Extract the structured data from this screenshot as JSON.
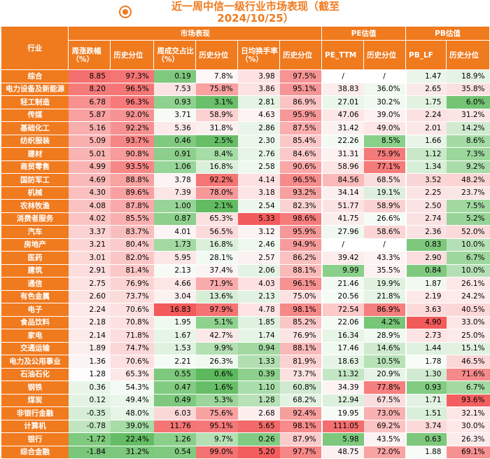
{
  "title": {
    "line1": "近一周中信一级行业市场表现（截至",
    "line2": "2024/10/25）"
  },
  "header": {
    "industry": "行业",
    "groups": [
      "市场表现",
      "PE估值",
      "PB估值"
    ],
    "columns": [
      "周涨跌幅（%）",
      "历史分位",
      "周成交占比（%）",
      "历史分位",
      "日均换手率（%）",
      "历史分位",
      "PE_TTM",
      "历史分位",
      "PB_LF",
      "历史分位"
    ]
  },
  "rows": [
    {
      "name": "综合",
      "values": [
        "8.85",
        "97.3%",
        "0.19",
        "7.8%",
        "3.98",
        "97.5%",
        "/",
        "/",
        "1.47",
        "18.9%"
      ]
    },
    {
      "name": "电力设备及新能源",
      "values": [
        "8.20",
        "96.5%",
        "7.53",
        "75.8%",
        "3.86",
        "95.1%",
        "38.83",
        "36.0%",
        "2.65",
        "35.8%"
      ]
    },
    {
      "name": "轻工制造",
      "values": [
        "6.78",
        "96.3%",
        "0.93",
        "3.1%",
        "2.81",
        "86.9%",
        "27.01",
        "30.2%",
        "1.75",
        "6.0%"
      ]
    },
    {
      "name": "传媒",
      "values": [
        "5.87",
        "92.0%",
        "3.71",
        "58.9%",
        "4.63",
        "95.9%",
        "47.06",
        "39.0%",
        "2.24",
        "31.2%"
      ]
    },
    {
      "name": "基础化工",
      "values": [
        "5.16",
        "92.2%",
        "5.36",
        "31.8%",
        "2.86",
        "87.5%",
        "31.42",
        "49.0%",
        "2.01",
        "14.2%"
      ]
    },
    {
      "name": "纺织服装",
      "values": [
        "5.09",
        "93.7%",
        "0.46",
        "2.5%",
        "2.30",
        "85.4%",
        "22.26",
        "8.5%",
        "1.66",
        "8.6%"
      ]
    },
    {
      "name": "建材",
      "values": [
        "5.01",
        "90.8%",
        "0.91",
        "8.4%",
        "2.76",
        "84.6%",
        "31.31",
        "75.9%",
        "1.12",
        "7.3%"
      ]
    },
    {
      "name": "商贸零售",
      "values": [
        "4.99",
        "93.5%",
        "1.06",
        "16.8%",
        "2.58",
        "90.6%",
        "58.96",
        "77.1%",
        "1.34",
        "9.2%"
      ]
    },
    {
      "name": "国防军工",
      "values": [
        "4.69",
        "88.8%",
        "3.78",
        "92.2%",
        "4.14",
        "96.5%",
        "84.56",
        "68.5%",
        "3.52",
        "48.2%"
      ]
    },
    {
      "name": "机械",
      "values": [
        "4.30",
        "89.6%",
        "7.39",
        "78.0%",
        "3.18",
        "93.2%",
        "34.14",
        "19.1%",
        "2.25",
        "23.7%"
      ]
    },
    {
      "name": "农林牧渔",
      "values": [
        "4.08",
        "87.8%",
        "1.00",
        "2.1%",
        "2.54",
        "82.3%",
        "51.77",
        "58.9%",
        "2.50",
        "7.5%"
      ]
    },
    {
      "name": "消费者服务",
      "values": [
        "4.02",
        "85.5%",
        "0.87",
        "65.3%",
        "5.33",
        "98.6%",
        "41.75",
        "26.6%",
        "2.74",
        "5.2%"
      ]
    },
    {
      "name": "汽车",
      "values": [
        "3.37",
        "83.7%",
        "4.01",
        "56.5%",
        "3.12",
        "95.9%",
        "27.96",
        "58.6%",
        "2.36",
        "52.0%"
      ]
    },
    {
      "name": "房地产",
      "values": [
        "3.21",
        "80.4%",
        "1.73",
        "16.8%",
        "2.46",
        "94.9%",
        "/",
        "/",
        "0.83",
        "10.0%"
      ]
    },
    {
      "name": "医药",
      "values": [
        "3.01",
        "82.0%",
        "5.95",
        "28.1%",
        "2.57",
        "86.2%",
        "39.42",
        "43.3%",
        "2.90",
        "6.7%"
      ]
    },
    {
      "name": "建筑",
      "values": [
        "2.91",
        "81.4%",
        "2.13",
        "37.4%",
        "2.06",
        "88.1%",
        "9.99",
        "35.5%",
        "0.84",
        "10.0%"
      ]
    },
    {
      "name": "通信",
      "values": [
        "2.75",
        "76.9%",
        "4.66",
        "71.9%",
        "4.03",
        "96.1%",
        "21.46",
        "19.9%",
        "1.87",
        "26.1%"
      ]
    },
    {
      "name": "有色金属",
      "values": [
        "2.60",
        "73.7%",
        "3.04",
        "13.6%",
        "2.13",
        "75.0%",
        "20.56",
        "21.8%",
        "2.19",
        "24.2%"
      ]
    },
    {
      "name": "电子",
      "values": [
        "2.24",
        "70.6%",
        "16.83",
        "97.9%",
        "4.78",
        "98.1%",
        "72.54",
        "86.9%",
        "3.63",
        "40.5%"
      ]
    },
    {
      "name": "食品饮料",
      "values": [
        "2.18",
        "70.8%",
        "1.95",
        "5.1%",
        "1.85",
        "85.2%",
        "22.06",
        "4.2%",
        "4.90",
        "33.0%"
      ]
    },
    {
      "name": "家电",
      "values": [
        "2.14",
        "71.8%",
        "1.67",
        "42.7%",
        "1.74",
        "76.9%",
        "16.34",
        "28.9%",
        "2.73",
        "25.0%"
      ]
    },
    {
      "name": "交通运输",
      "values": [
        "1.89",
        "74.7%",
        "1.53",
        "9.9%",
        "0.94",
        "88.1%",
        "17.46",
        "14.6%",
        "1.44",
        "15.1%"
      ]
    },
    {
      "name": "电力及公用事业",
      "values": [
        "1.36",
        "70.6%",
        "2.21",
        "26.3%",
        "1.33",
        "81.9%",
        "18.63",
        "10.5%",
        "1.78",
        "46.5%"
      ]
    },
    {
      "name": "石油石化",
      "values": [
        "1.28",
        "65.3%",
        "0.55",
        "0.6%",
        "0.39",
        "73.7%",
        "11.32",
        "20.9%",
        "1.30",
        "71.6%"
      ]
    },
    {
      "name": "钢铁",
      "values": [
        "0.36",
        "54.3%",
        "0.47",
        "1.6%",
        "1.10",
        "60.8%",
        "34.39",
        "77.8%",
        "0.93",
        "6.7%"
      ]
    },
    {
      "name": "煤炭",
      "values": [
        "0.12",
        "49.4%",
        "0.49",
        "5.3%",
        "1.28",
        "68.2%",
        "12.94",
        "67.5%",
        "1.71",
        "93.6%"
      ]
    },
    {
      "name": "非银行金融",
      "values": [
        "-0.35",
        "48.0%",
        "6.03",
        "75.6%",
        "2.68",
        "92.4%",
        "19.95",
        "73.0%",
        "1.51",
        "32.1%"
      ]
    },
    {
      "name": "计算机",
      "values": [
        "-0.78",
        "39.0%",
        "11.76",
        "95.1%",
        "5.65",
        "98.1%",
        "111.05",
        "69.2%",
        "3.74",
        "30.0%"
      ]
    },
    {
      "name": "银行",
      "values": [
        "-1.72",
        "22.4%",
        "1.26",
        "9.7%",
        "0.26",
        "87.9%",
        "5.98",
        "43.5%",
        "0.63",
        "26.3%"
      ]
    },
    {
      "name": "综合金融",
      "values": [
        "-1.84",
        "31.2%",
        "0.54",
        "99.0%",
        "5.20",
        "97.7%",
        "48.75",
        "72.0%",
        "1.88",
        "69.1%"
      ]
    }
  ],
  "colors": {
    "header": "#f07a1e",
    "cells": [
      [
        "#f46f6f",
        "#f57474",
        "#7fc97f",
        "#fdf7f7",
        "#fde2e2",
        "#f69393",
        "#ffffff",
        "#ffffff",
        "#eaf6ea",
        "#e4f3e4"
      ],
      [
        "#f57a7a",
        "#f57676",
        "#fce3e3",
        "#f8a1a1",
        "#fde2e2",
        "#f69595",
        "#fcecec",
        "#f0f9f0",
        "#fbe9e9",
        "#fbe0e0"
      ],
      [
        "#f79191",
        "#f67a7a",
        "#8fd18f",
        "#6abf6a",
        "#e4f3e4",
        "#fbc3c3",
        "#e9f6e9",
        "#f1f9f1",
        "#e1f2e1",
        "#74c474"
      ],
      [
        "#f9a0a0",
        "#f79292",
        "#f6fbf6",
        "#fbd1d1",
        "#fdf3f3",
        "#f69898",
        "#fde6e6",
        "#fdf1f1",
        "#fbe1e1",
        "#fbe5e5"
      ],
      [
        "#f9aeae",
        "#f79191",
        "#fceaea",
        "#fbf0f0",
        "#e8f5e8",
        "#faaeae",
        "#fcf1f1",
        "#fce6e6",
        "#fce7e7",
        "#d1ebd1"
      ],
      [
        "#faafaf",
        "#f68585",
        "#80ca80",
        "#67be67",
        "#ebf7eb",
        "#fbc8c8",
        "#f3faf3",
        "#8ad08a",
        "#e8f5e8",
        "#a4dba4"
      ],
      [
        "#fab3b3",
        "#f79b9b",
        "#8ccf8c",
        "#a6dca6",
        "#e7f5e7",
        "#fbc9c9",
        "#fcf2f2",
        "#f57a7a",
        "#c9e8c9",
        "#9bd69b"
      ],
      [
        "#fab3b3",
        "#f68787",
        "#98d598",
        "#dbf0db",
        "#eff8ef",
        "#faa7a7",
        "#fde5e5",
        "#f57a7a",
        "#d7eed7",
        "#aadcaa"
      ],
      [
        "#fbb8b8",
        "#f8a2a2",
        "#fdf3f3",
        "#f57474",
        "#fde1e1",
        "#f68b8b",
        "#fbbaba",
        "#fadddd",
        "#fbd6d6",
        "#fcd4d4"
      ],
      [
        "#fbbfbf",
        "#f9a0a0",
        "#fce5e5",
        "#f79898",
        "#fde5e5",
        "#f6a0a0",
        "#fcefef",
        "#deefde",
        "#fde4e4",
        "#fbe6e6"
      ],
      [
        "#fbc2c2",
        "#f9a9a9",
        "#97d497",
        "#62bc62",
        "#edf7ed",
        "#fbd2d2",
        "#fce3e3",
        "#fbd2d2",
        "#fbe3e3",
        "#a1d9a1"
      ],
      [
        "#fbc4c4",
        "#f9afaf",
        "#8cd08c",
        "#fde0e0",
        "#f35c5c",
        "#f67c7c",
        "#fceded",
        "#f5fbf5",
        "#fbe2e2",
        "#97d497"
      ],
      [
        "#fcd2d2",
        "#fabdbd",
        "#fdf5f5",
        "#fcdada",
        "#fdf3f3",
        "#f69898",
        "#f0f9f0",
        "#fbd4d4",
        "#fbe2e2",
        "#fcdada"
      ],
      [
        "#fcd5d5",
        "#fbcaca",
        "#a3daa3",
        "#dbf0db",
        "#eef8ee",
        "#f69b9b",
        "#ffffff",
        "#ffffff",
        "#7dc87d",
        "#b5e0b5"
      ],
      [
        "#fcdada",
        "#fbc6c6",
        "#fde6e6",
        "#f3faf3",
        "#fbf1f1",
        "#fac1c1",
        "#fcecec",
        "#fdf3f3",
        "#fcdede",
        "#9fd89f"
      ],
      [
        "#fddddd",
        "#fbc7c7",
        "#f6fbf6",
        "#fcf3f3",
        "#e4f3e4",
        "#fab9b9",
        "#8ad08a",
        "#fdf1f1",
        "#7fc97f",
        "#b5e0b5"
      ],
      [
        "#fde2e2",
        "#fcd3d3",
        "#fde6e6",
        "#f9abab",
        "#fde1e1",
        "#f69292",
        "#f3faf3",
        "#e0f1e0",
        "#f1f9f1",
        "#fde7e7"
      ],
      [
        "#fde2e2",
        "#fcdbdb",
        "#fbf1f1",
        "#d6eed6",
        "#e2f2e2",
        "#fde0e0",
        "#f5fbf5",
        "#e6f4e6",
        "#fde8e8",
        "#fdeaea"
      ],
      [
        "#fde9e9",
        "#fde0e0",
        "#f35a5a",
        "#f57373",
        "#fde3e3",
        "#f78888",
        "#fdc9c9",
        "#f67e7e",
        "#fcdada",
        "#fbd7d7"
      ],
      [
        "#fdeaea",
        "#fde0e0",
        "#f0f9f0",
        "#8fd18f",
        "#e0f1e0",
        "#fbc6c6",
        "#f4faf4",
        "#77c577",
        "#f35a5a",
        "#fde6e6"
      ],
      [
        "#fdebeb",
        "#fddddd",
        "#e7f5e7",
        "#fbe9e9",
        "#e5f4e5",
        "#fde4e4",
        "#e7f5e7",
        "#f1faf1",
        "#fde3e3",
        "#fdeaea"
      ],
      [
        "#fdeeee",
        "#fcd7d7",
        "#e0f1e0",
        "#b3e0b3",
        "#a1d9a1",
        "#fab9b9",
        "#f0f9f0",
        "#cfeacf",
        "#dff1df",
        "#e1f2e1"
      ],
      [
        "#fdf4f4",
        "#fde0e0",
        "#f5fbf5",
        "#f0f9f0",
        "#b2dfb2",
        "#fcd1d1",
        "#e5f4e5",
        "#b7e1b7",
        "#f7fcf7",
        "#fcd7d7"
      ],
      [
        "#fefcfc",
        "#fde7e7",
        "#7fc97f",
        "#5db95d",
        "#8ed18e",
        "#fde1e1",
        "#c5e6c5",
        "#e6f4e6",
        "#d1ebd1",
        "#f58a8a"
      ],
      [
        "#e8f5e8",
        "#f4faf4",
        "#82cb82",
        "#67be67",
        "#a9ddaa",
        "#cfeacf",
        "#fdf3f3",
        "#f67f7f",
        "#82cb82",
        "#a2daa2"
      ],
      [
        "#e3f3e3",
        "#eaf6ea",
        "#7fc97f",
        "#9bd69b",
        "#b7e1b7",
        "#e3f3e3",
        "#ddf0dd",
        "#fadddd",
        "#e2f2e2",
        "#f35f5f"
      ],
      [
        "#d6eed6",
        "#e7f5e7",
        "#fbd8d8",
        "#f8a2a2",
        "#fdeeee",
        "#f69f9f",
        "#f6fbf6",
        "#f9b1b1",
        "#d9efd9",
        "#fde6e6"
      ],
      [
        "#c0e5c0",
        "#a6dca6",
        "#f57575",
        "#f57878",
        "#f36a6a",
        "#f78a8a",
        "#f46f6f",
        "#fbc3c3",
        "#fcd9d9",
        "#fde7e7"
      ],
      [
        "#80ca80",
        "#64bd64",
        "#8bcf8b",
        "#b4e0b4",
        "#82cb82",
        "#fbcbcb",
        "#7dc87d",
        "#fdf3f3",
        "#7ec87e",
        "#fcebeb"
      ],
      [
        "#7ac67a",
        "#7dc87d",
        "#80ca80",
        "#f57272",
        "#f35d5d",
        "#f78787",
        "#fcf0f0",
        "#f9a4a4",
        "#f8fcf8",
        "#f69191"
      ]
    ]
  }
}
